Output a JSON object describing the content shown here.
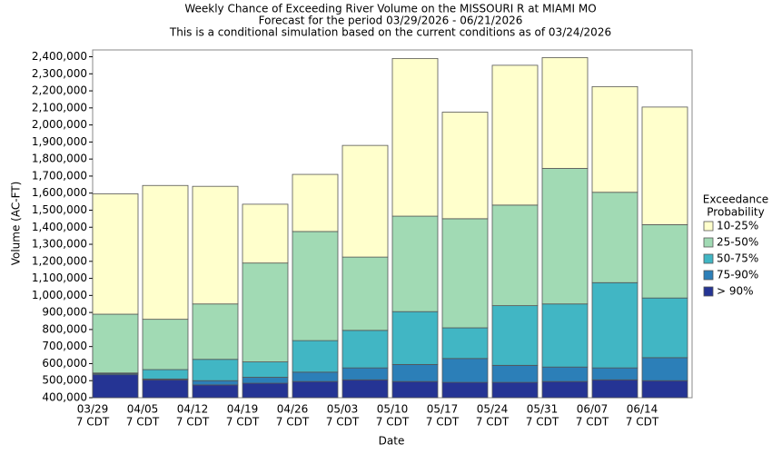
{
  "chart_data": {
    "type": "bar",
    "title": [
      "Weekly Chance of Exceeding River Volume on the MISSOURI R at MIAMI MO",
      "Forecast for the period 03/29/2026 - 06/21/2026",
      "This is a conditional simulation based on the current conditions as of 03/24/2026"
    ],
    "x_label": "Date",
    "y_label": "Volume (AC-FT)",
    "categories": [
      "03/29",
      "04/05",
      "04/12",
      "04/19",
      "04/26",
      "05/03",
      "05/10",
      "05/17",
      "05/24",
      "05/31",
      "06/07",
      "06/14"
    ],
    "category_sublabel": "7 CDT",
    "legend_title": [
      "Exceedance",
      "Probability"
    ],
    "legend_position": "right",
    "grid": false,
    "series": [
      {
        "name": "10-25%",
        "color": "#ffffcc",
        "values": [
          1596000,
          1645000,
          1640000,
          1535000,
          1710000,
          1880000,
          2390000,
          2075000,
          2350000,
          2395000,
          2225000,
          2105000
        ]
      },
      {
        "name": "25-50%",
        "color": "#a1dab4",
        "values": [
          890000,
          860000,
          950000,
          1190000,
          1375000,
          1225000,
          1465000,
          1450000,
          1530000,
          1745000,
          1605000,
          1415000
        ]
      },
      {
        "name": "50-75%",
        "color": "#41b6c4",
        "values": [
          545000,
          565000,
          625000,
          610000,
          735000,
          795000,
          905000,
          810000,
          940000,
          950000,
          1075000,
          985000
        ]
      },
      {
        "name": "75-90%",
        "color": "#2c7fb8",
        "values": [
          542000,
          510000,
          500000,
          520000,
          550000,
          575000,
          595000,
          630000,
          590000,
          580000,
          575000,
          635000
        ]
      },
      {
        "name": "> 90%",
        "color": "#253494",
        "values": [
          535000,
          505000,
          475000,
          485000,
          495000,
          505000,
          495000,
          490000,
          490000,
          495000,
          505000,
          500000
        ]
      }
    ],
    "ylim": [
      400000,
      2440000
    ],
    "yticks": [
      {
        "value": 400000,
        "label": "400,000"
      },
      {
        "value": 500000,
        "label": "500,000"
      },
      {
        "value": 600000,
        "label": "600,000"
      },
      {
        "value": 700000,
        "label": "700,000"
      },
      {
        "value": 800000,
        "label": "800,000"
      },
      {
        "value": 900000,
        "label": "900,000"
      },
      {
        "value": 1000000,
        "label": "1,000,000"
      },
      {
        "value": 1100000,
        "label": "1,100,000"
      },
      {
        "value": 1200000,
        "label": "1,200,000"
      },
      {
        "value": 1300000,
        "label": "1,300,000"
      },
      {
        "value": 1400000,
        "label": "1,400,000"
      },
      {
        "value": 1500000,
        "label": "1,500,000"
      },
      {
        "value": 1600000,
        "label": "1,600,000"
      },
      {
        "value": 1700000,
        "label": "1,700,000"
      },
      {
        "value": 1800000,
        "label": "1,800,000"
      },
      {
        "value": 1900000,
        "label": "1,900,000"
      },
      {
        "value": 2000000,
        "label": "2,000,000"
      },
      {
        "value": 2100000,
        "label": "2,100,000"
      },
      {
        "value": 2200000,
        "label": "2,200,000"
      },
      {
        "value": 2300000,
        "label": "2,300,000"
      },
      {
        "value": 2400000,
        "label": "2,400,000"
      }
    ]
  }
}
